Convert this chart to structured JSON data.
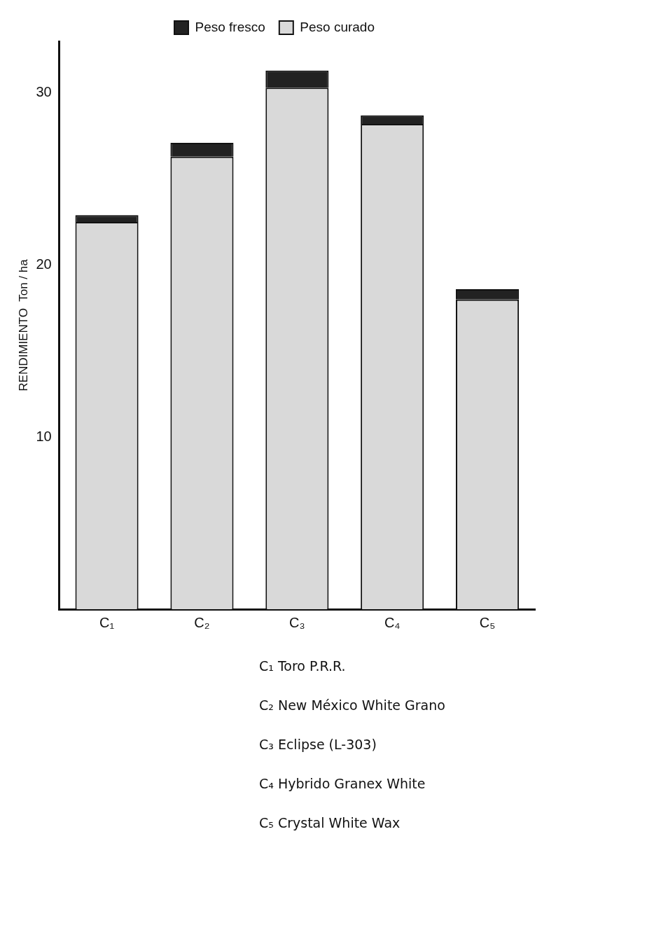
{
  "chart_data": {
    "type": "bar",
    "ylabel": "RENDIMIENTO  Ton / ha",
    "categories": [
      "C₁",
      "C₂",
      "C₃",
      "C₄",
      "C₅"
    ],
    "stacked": true,
    "series": [
      {
        "name": "Peso curado",
        "color": "#d9d9d9",
        "values": [
          22.5,
          26.3,
          30.3,
          28.2,
          18.0
        ]
      },
      {
        "name": "Peso fresco",
        "color": "#222222",
        "values": [
          0.4,
          0.8,
          1.0,
          0.5,
          0.6
        ]
      }
    ],
    "ylim": [
      0,
      33
    ],
    "yticks": [
      10,
      20,
      30
    ],
    "grid": false,
    "legend": "top",
    "annotations": [
      "C₁ Toro P.R.R.",
      "C₂ New México White Grano",
      "C₃ Eclipse (L-303)",
      "C₄ Hybrido Granex White",
      "C₅ Crystal White Wax"
    ]
  }
}
